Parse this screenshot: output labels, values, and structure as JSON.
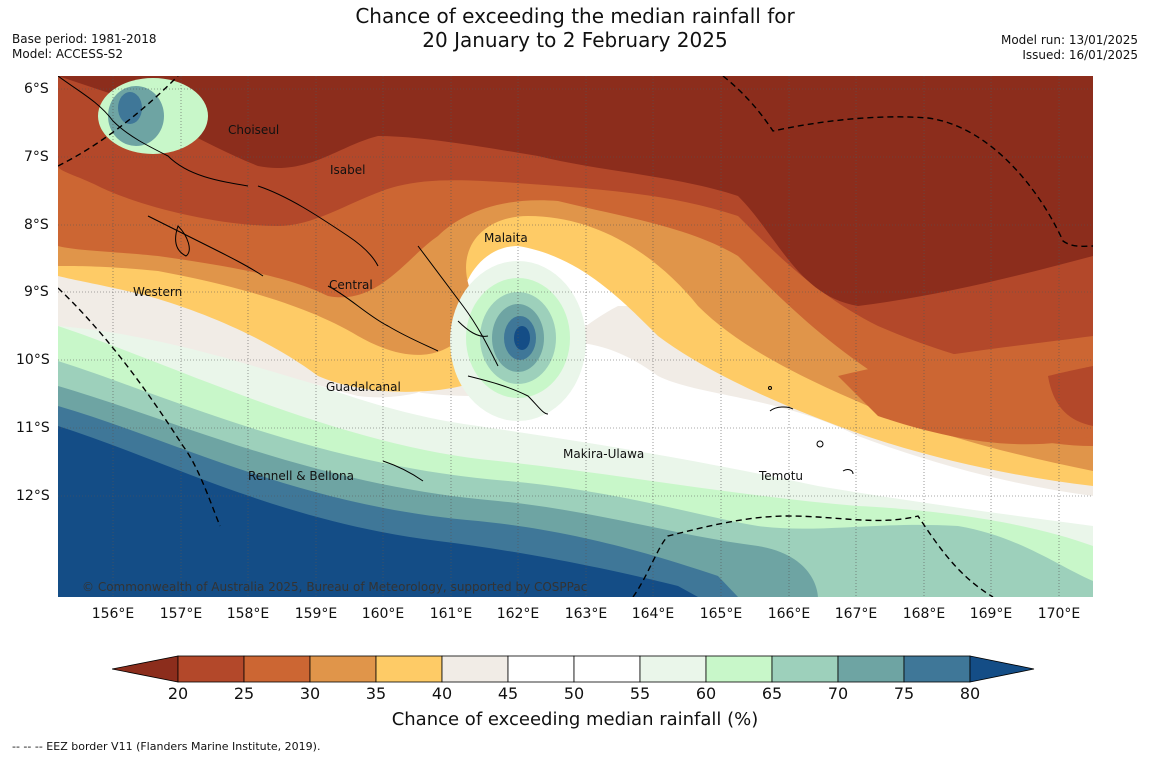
{
  "header": {
    "title_line1": "Chance of exceeding the median rainfall for",
    "title_line2": "20 January to 2 February 2025",
    "base_period": "Base period: 1981-2018",
    "model": "Model: ACCESS-S2",
    "model_run": "Model run: 13/01/2025",
    "issued": "Issued: 16/01/2025"
  },
  "map": {
    "lon_labels": [
      "156°E",
      "157°E",
      "158°E",
      "159°E",
      "160°E",
      "161°E",
      "162°E",
      "163°E",
      "164°E",
      "165°E",
      "166°E",
      "167°E",
      "168°E",
      "169°E",
      "170°E"
    ],
    "lat_labels": [
      "6°S",
      "7°S",
      "8°S",
      "9°S",
      "10°S",
      "11°S",
      "12°S"
    ],
    "regions": [
      "Choiseul",
      "Isabel",
      "Malaita",
      "Western",
      "Central",
      "Guadalcanal",
      "Makira-Ulawa",
      "Temotu",
      "Rennell & Bellona"
    ],
    "copyright": "© Commonwealth of Australia 2025, Bureau of Meteorology, supported by COSPPac"
  },
  "colorbar": {
    "ticks": [
      "20",
      "25",
      "30",
      "35",
      "40",
      "45",
      "50",
      "55",
      "60",
      "65",
      "70",
      "75",
      "80"
    ],
    "colors": [
      "#8c2d1c",
      "#b3482a",
      "#cc6633",
      "#e0954a",
      "#fecb66",
      "#f1ece6",
      "#ffffff",
      "#ffffff",
      "#eaf6ea",
      "#c8f7c9",
      "#9dd0bb",
      "#6ea4a3",
      "#3f7798",
      "#144d86"
    ],
    "title": "Chance of exceeding median rainfall (%)"
  },
  "footnote": "-- -- -- EEZ border V11 (Flanders Marine Institute, 2019)."
}
